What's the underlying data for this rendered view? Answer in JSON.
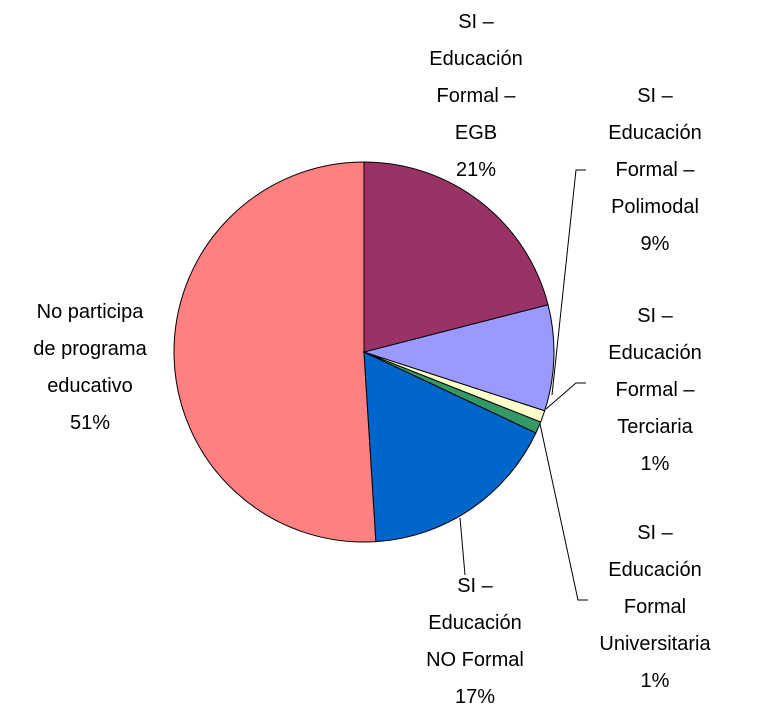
{
  "chart_data": {
    "type": "pie",
    "categories": [
      "SI – Educación Formal – EGB",
      "SI – Educación Formal – Polimodal",
      "SI – Educación Formal – Terciaria",
      "SI – Educación Formal Universitaria",
      "SI – Educación NO Formal",
      "No participa de programa educativo"
    ],
    "values": [
      21,
      9,
      1,
      1,
      17,
      51
    ],
    "value_labels": [
      "21%",
      "9%",
      "1%",
      "1%",
      "17%",
      "51%"
    ],
    "colors": [
      "#993366",
      "#9999ff",
      "#ffffcc",
      "#339966",
      "#0066cc",
      "#ff8080"
    ]
  }
}
